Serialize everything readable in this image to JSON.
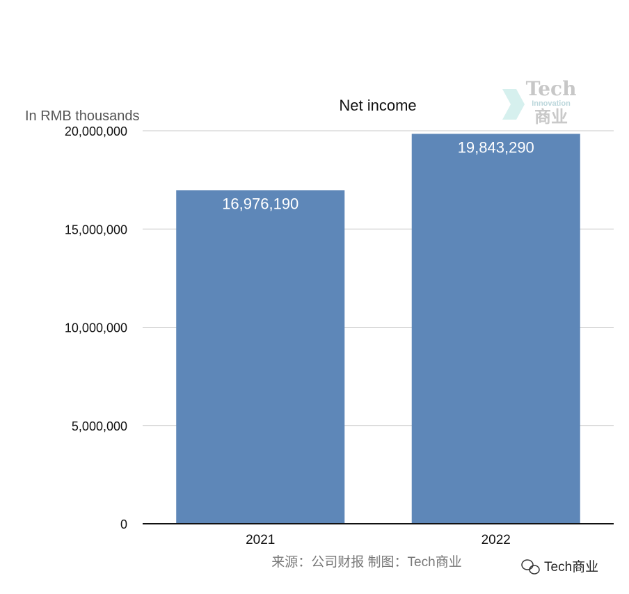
{
  "chart_data": {
    "type": "bar",
    "title": "Net income",
    "unit_label": "In RMB thousands",
    "categories": [
      "2021",
      "2022"
    ],
    "values": [
      16976190,
      19843290
    ],
    "data_labels": [
      "16,976,190",
      "19,843,290"
    ],
    "ylim": [
      0,
      20000000
    ],
    "yticks": [
      0,
      5000000,
      10000000,
      15000000,
      20000000
    ],
    "ytick_labels": [
      "0",
      "5,000,000",
      "10,000,000",
      "15,000,000",
      "20,000,000"
    ],
    "grid": true,
    "bar_color": "#5e87b8",
    "source": "来源：公司财报 制图：Tech商业"
  },
  "logo": {
    "text": "Tech",
    "sub": "Innovation",
    "cn": "商业"
  },
  "watermark": "Tech商业"
}
